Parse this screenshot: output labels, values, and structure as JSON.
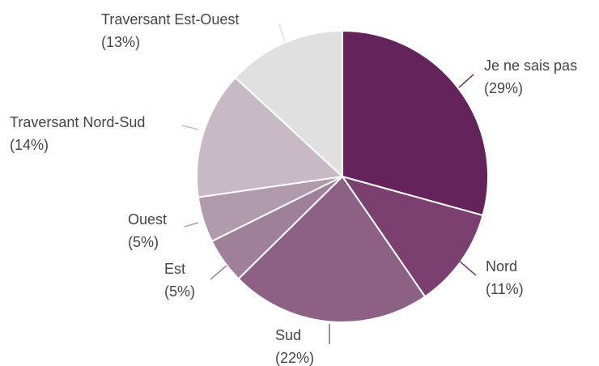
{
  "chart_data": {
    "type": "pie",
    "categories": [
      "Je ne sais pas",
      "Nord",
      "Sud",
      "Est",
      "Ouest",
      "Traversant Nord-Sud",
      "Traversant Est-Ouest"
    ],
    "values": [
      29,
      11,
      22,
      5,
      5,
      14,
      13
    ],
    "value_labels": [
      "(29%)",
      "(11%)",
      "(22%)",
      "(5%)",
      "(5%)",
      "(14%)",
      "(13%)"
    ],
    "colors": [
      "#64235a",
      "#7b4070",
      "#8c6185",
      "#a07f99",
      "#b29aad",
      "#c7bac5",
      "#e0e0e0"
    ]
  }
}
